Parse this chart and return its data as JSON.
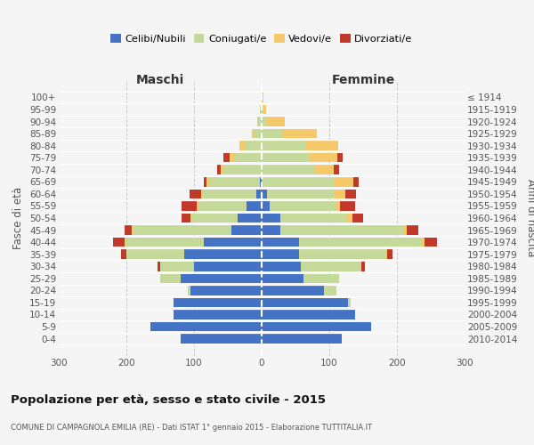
{
  "age_groups": [
    "100+",
    "95-99",
    "90-94",
    "85-89",
    "80-84",
    "75-79",
    "70-74",
    "65-69",
    "60-64",
    "55-59",
    "50-54",
    "45-49",
    "40-44",
    "35-39",
    "30-34",
    "25-29",
    "20-24",
    "15-19",
    "10-14",
    "5-9",
    "0-4"
  ],
  "birth_years": [
    "≤ 1914",
    "1915-1919",
    "1920-1924",
    "1925-1929",
    "1930-1934",
    "1935-1939",
    "1940-1944",
    "1945-1949",
    "1950-1954",
    "1955-1959",
    "1960-1964",
    "1965-1969",
    "1970-1974",
    "1975-1979",
    "1980-1984",
    "1985-1989",
    "1990-1994",
    "1995-1999",
    "2000-2004",
    "2005-2009",
    "2010-2014"
  ],
  "maschi_celibi": [
    0,
    0,
    0,
    0,
    0,
    0,
    0,
    2,
    8,
    22,
    35,
    45,
    85,
    115,
    100,
    120,
    105,
    130,
    130,
    165,
    120
  ],
  "maschi_coniugati": [
    0,
    2,
    5,
    10,
    25,
    40,
    55,
    75,
    80,
    72,
    68,
    145,
    115,
    85,
    50,
    30,
    4,
    0,
    0,
    0,
    0
  ],
  "maschi_vedovi": [
    0,
    0,
    2,
    5,
    8,
    8,
    6,
    4,
    2,
    2,
    2,
    2,
    2,
    0,
    0,
    0,
    0,
    0,
    0,
    0,
    0
  ],
  "maschi_divorziati": [
    0,
    0,
    0,
    0,
    0,
    8,
    5,
    5,
    16,
    22,
    14,
    10,
    18,
    8,
    4,
    0,
    0,
    0,
    0,
    0,
    0
  ],
  "femmine_celibi": [
    0,
    0,
    0,
    0,
    0,
    0,
    0,
    0,
    8,
    12,
    28,
    28,
    55,
    55,
    58,
    62,
    92,
    128,
    138,
    162,
    118
  ],
  "femmine_coniugati": [
    0,
    2,
    6,
    30,
    65,
    70,
    78,
    108,
    98,
    98,
    98,
    182,
    182,
    128,
    88,
    52,
    18,
    4,
    0,
    0,
    0
  ],
  "femmine_vedovi": [
    2,
    4,
    28,
    52,
    48,
    42,
    28,
    28,
    18,
    6,
    8,
    4,
    4,
    2,
    2,
    0,
    0,
    0,
    0,
    0,
    0
  ],
  "femmine_divorziati": [
    0,
    0,
    0,
    0,
    0,
    8,
    8,
    8,
    16,
    22,
    16,
    18,
    18,
    8,
    4,
    0,
    0,
    0,
    0,
    0,
    0
  ],
  "color_celibi": "#4472c4",
  "color_coniugati": "#c5d99b",
  "color_vedovi": "#f5c96a",
  "color_divorziati": "#c0392b",
  "title": "Popolazione per età, sesso e stato civile - 2015",
  "subtitle": "COMUNE DI CAMPAGNOLA EMILIA (RE) - Dati ISTAT 1° gennaio 2015 - Elaborazione TUTTITALIA.IT",
  "label_maschi": "Maschi",
  "label_femmine": "Femmine",
  "ylabel_left": "Fasce di età",
  "ylabel_right": "Anni di nascita",
  "legend_labels": [
    "Celibi/Nubili",
    "Coniugati/e",
    "Vedovi/e",
    "Divorziati/e"
  ],
  "xlim": 300,
  "bg_color": "#f5f5f5",
  "grid_color": "#c8c8c8"
}
